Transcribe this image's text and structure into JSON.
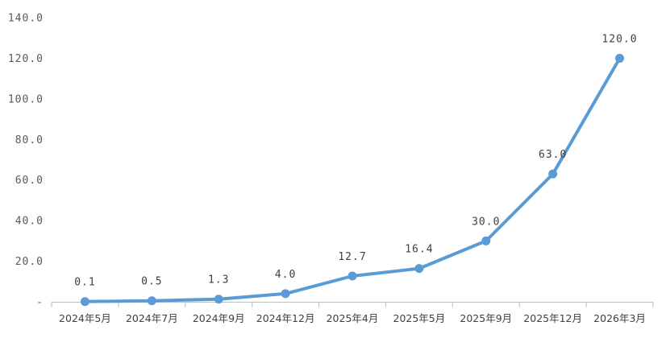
{
  "chart_data": {
    "type": "line",
    "title": "",
    "xlabel": "",
    "ylabel": "",
    "categories": [
      "2024年5月",
      "2024年7月",
      "2024年9月",
      "2024年12月",
      "2025年4月",
      "2025年5月",
      "2025年9月",
      "2025年12月",
      "2026年3月"
    ],
    "series": [
      {
        "values": [
          0.1,
          0.5,
          1.3,
          4.0,
          12.7,
          16.4,
          30.0,
          63.0,
          120.0
        ],
        "labels": [
          "0.1",
          "0.5",
          "1.3",
          "4.0",
          "12.7",
          "16.4",
          "30.0",
          "63.0",
          "120.0"
        ],
        "color": "#5B9BD5"
      }
    ],
    "ylim": [
      0,
      140
    ],
    "yticks": [
      {
        "value": 0,
        "label": "-"
      },
      {
        "value": 20,
        "label": "20.0"
      },
      {
        "value": 40,
        "label": "40.0"
      },
      {
        "value": 60,
        "label": "60.0"
      },
      {
        "value": 80,
        "label": "80.0"
      },
      {
        "value": 100,
        "label": "100.0"
      },
      {
        "value": 120,
        "label": "120.0"
      },
      {
        "value": 140,
        "label": "140.0"
      }
    ],
    "grid": false,
    "legend": "none"
  }
}
